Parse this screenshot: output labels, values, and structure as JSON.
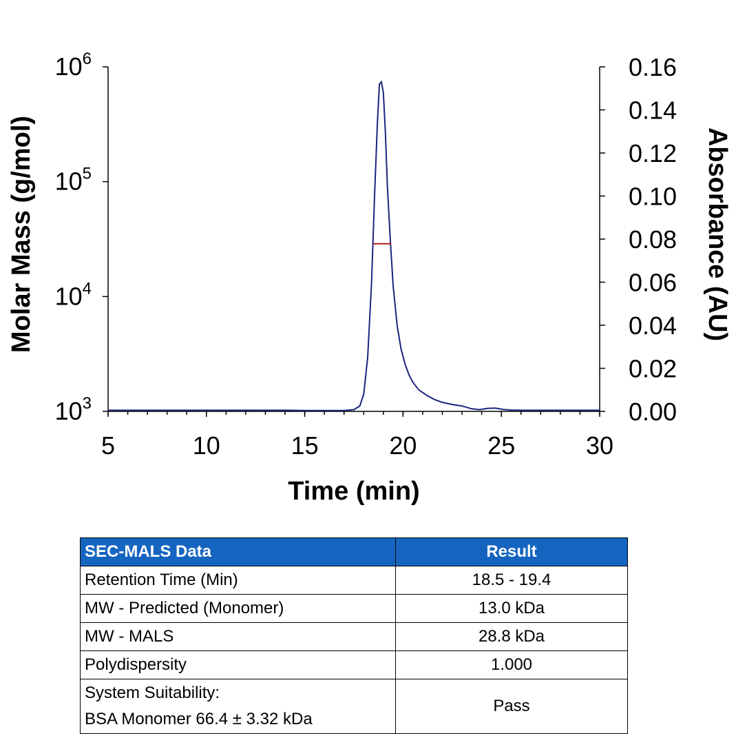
{
  "chart_data": {
    "type": "line",
    "xlabel": "Time (min)",
    "ylabel_left": "Molar Mass (g/mol)",
    "ylabel_right": "Absorbance (AU)",
    "xlim": [
      5,
      30
    ],
    "x_ticks": [
      "5",
      "10",
      "15",
      "20",
      "25",
      "30"
    ],
    "y_left_scale": "log",
    "y_left_lim": [
      1000,
      1000000
    ],
    "y_left_ticks": [
      {
        "base": "10",
        "exp": "3"
      },
      {
        "base": "10",
        "exp": "4"
      },
      {
        "base": "10",
        "exp": "5"
      },
      {
        "base": "10",
        "exp": "6"
      }
    ],
    "y_right_lim": [
      0,
      0.16
    ],
    "y_right_ticks": [
      "0.00",
      "0.02",
      "0.04",
      "0.06",
      "0.08",
      "0.10",
      "0.12",
      "0.14",
      "0.16"
    ],
    "grid": false,
    "series": [
      {
        "axis": "right",
        "color": "#1a237e",
        "x": [
          5,
          8,
          10,
          12,
          14,
          15,
          16,
          17,
          17.5,
          17.8,
          18.0,
          18.2,
          18.4,
          18.55,
          18.7,
          18.8,
          18.9,
          19.0,
          19.1,
          19.2,
          19.35,
          19.5,
          19.7,
          19.9,
          20.1,
          20.3,
          20.5,
          20.8,
          21.2,
          21.6,
          22,
          22.5,
          23,
          23.5,
          23.9,
          24.3,
          24.7,
          25.1,
          25.5,
          26,
          27,
          28,
          29,
          30
        ],
        "y": [
          0.0005,
          0.0005,
          0.0005,
          0.0005,
          0.0005,
          0.0004,
          0.0004,
          0.0004,
          0.0008,
          0.0025,
          0.008,
          0.025,
          0.06,
          0.1,
          0.135,
          0.152,
          0.153,
          0.148,
          0.13,
          0.105,
          0.08,
          0.058,
          0.04,
          0.029,
          0.022,
          0.017,
          0.0135,
          0.01,
          0.0075,
          0.0055,
          0.0042,
          0.0032,
          0.0025,
          0.0012,
          0.0008,
          0.0014,
          0.0015,
          0.0009,
          0.0006,
          0.0005,
          0.0005,
          0.0005,
          0.0005,
          0.0005
        ]
      },
      {
        "axis": "left",
        "color": "#b71c1c",
        "x": [
          18.5,
          19.4
        ],
        "y": [
          28800,
          28800
        ]
      }
    ]
  },
  "table": {
    "headers": [
      "SEC-MALS Data",
      "Result"
    ],
    "rows": [
      {
        "metric": "Retention Time (Min)",
        "value": "18.5 - 19.4"
      },
      {
        "metric": "MW - Predicted (Monomer)",
        "value": "13.0 kDa"
      },
      {
        "metric": "MW - MALS",
        "value": "28.8 kDa"
      },
      {
        "metric": "Polydispersity",
        "value": "1.000"
      }
    ],
    "suitability": {
      "line1": "System Suitability:",
      "line2": "BSA Monomer 66.4 ± 3.32 kDa",
      "value": "Pass"
    },
    "header_color": "#1565c0"
  }
}
